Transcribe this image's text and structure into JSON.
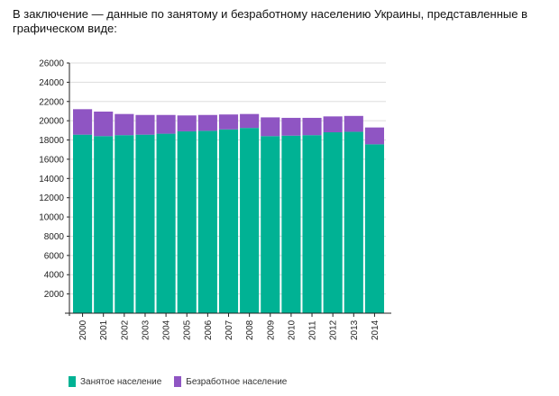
{
  "intro_text": "В заключение — данные по занятому и безработному населению Украины, представленные в графическом виде:",
  "colors": {
    "employed": "#00b294",
    "unemployed": "#8f55c3",
    "grid": "#dddddd",
    "axis": "#222222"
  },
  "chart_data": {
    "type": "bar",
    "stacked": true,
    "title": "",
    "xlabel": "",
    "ylabel": "",
    "ylim": [
      0,
      26000
    ],
    "yticks": [
      2000,
      4000,
      6000,
      8000,
      10000,
      12000,
      14000,
      16000,
      18000,
      20000,
      22000,
      24000,
      26000
    ],
    "grid": true,
    "legend_position": "bottom-left",
    "categories": [
      "2000",
      "2001",
      "2002",
      "2003",
      "2004",
      "2005",
      "2006",
      "2007",
      "2008",
      "2009",
      "2010",
      "2011",
      "2012",
      "2013",
      "2014"
    ],
    "series": [
      {
        "name": "Занятое население",
        "color": "#00b294",
        "values": [
          18550,
          18400,
          18500,
          18550,
          18650,
          18900,
          18950,
          19100,
          19250,
          18400,
          18450,
          18500,
          18800,
          18850,
          17550
        ]
      },
      {
        "name": "Безработное население",
        "color": "#8f55c3",
        "values": [
          2650,
          2550,
          2200,
          2050,
          1950,
          1650,
          1650,
          1550,
          1450,
          1950,
          1850,
          1800,
          1650,
          1650,
          1750
        ]
      }
    ]
  }
}
